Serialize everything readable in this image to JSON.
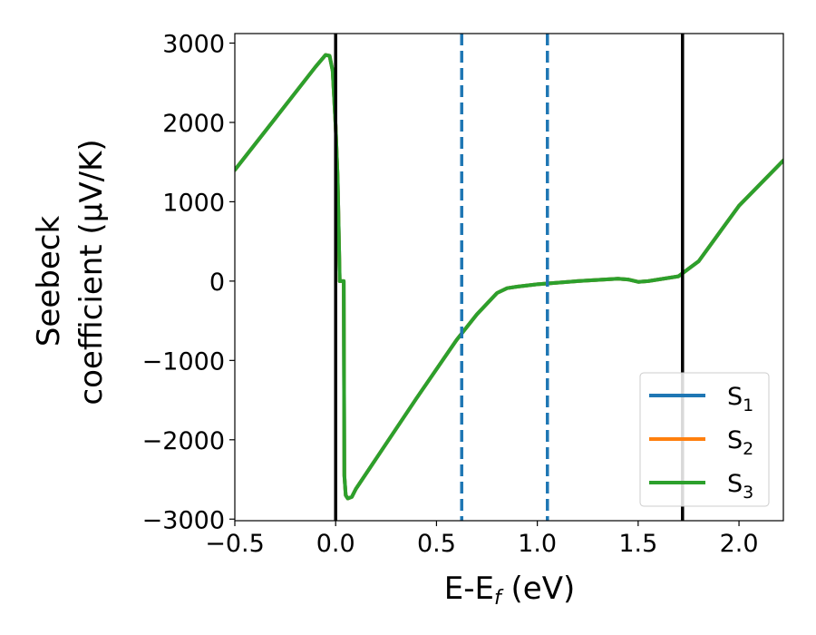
{
  "chart_data": {
    "type": "line",
    "xlabel": {
      "main": "E-E",
      "sub": "f",
      "unit": " (eV)"
    },
    "ylabel": {
      "line1": "Seebeck",
      "line2": "coefficient  (μV/K)"
    },
    "xlim": [
      -0.5,
      2.22
    ],
    "ylim": [
      -3020,
      3120
    ],
    "xticks": [
      -0.5,
      0.0,
      0.5,
      1.0,
      1.5,
      2.0
    ],
    "xtick_labels": [
      "−0.5",
      "0.0",
      "0.5",
      "1.0",
      "1.5",
      "2.0"
    ],
    "yticks": [
      -3000,
      -2000,
      -1000,
      0,
      1000,
      2000,
      3000
    ],
    "ytick_labels": [
      "−3000",
      "−2000",
      "−1000",
      "0",
      "1000",
      "2000",
      "3000"
    ],
    "grid": false,
    "legend_position": "lower-right",
    "series": [
      {
        "name": "S",
        "sub": "1",
        "color": "#1f77b4",
        "x": [
          -0.5,
          -0.3,
          -0.1,
          -0.05,
          -0.03,
          -0.015,
          0.0,
          0.01,
          0.015,
          0.02,
          0.035,
          0.036,
          0.04,
          0.043,
          0.05,
          0.06,
          0.08,
          0.1,
          0.2,
          0.4,
          0.6,
          0.7,
          0.8,
          0.85,
          0.9,
          1.0,
          1.2,
          1.4,
          1.45,
          1.5,
          1.55,
          1.6,
          1.7,
          1.8,
          1.9,
          2.0,
          2.22
        ],
        "y": [
          1400,
          2050,
          2700,
          2850,
          2840,
          2650,
          1950,
          1300,
          700,
          0,
          0,
          0,
          0,
          -2450,
          -2700,
          -2740,
          -2720,
          -2620,
          -2240,
          -1480,
          -740,
          -420,
          -150,
          -90,
          -70,
          -40,
          0,
          30,
          20,
          -10,
          0,
          20,
          60,
          250,
          600,
          950,
          1520
        ]
      },
      {
        "name": "S",
        "sub": "2",
        "color": "#ff7f0e",
        "x": [
          -0.5,
          -0.3,
          -0.1,
          -0.05,
          -0.03,
          -0.015,
          0.0,
          0.01,
          0.015,
          0.02,
          0.035,
          0.036,
          0.04,
          0.043,
          0.05,
          0.06,
          0.08,
          0.1,
          0.2,
          0.4,
          0.6,
          0.7,
          0.8,
          0.85,
          0.9,
          1.0,
          1.2,
          1.4,
          1.45,
          1.5,
          1.55,
          1.6,
          1.7,
          1.8,
          1.9,
          2.0,
          2.22
        ],
        "y": [
          1400,
          2050,
          2700,
          2850,
          2840,
          2650,
          1950,
          1300,
          700,
          0,
          0,
          0,
          0,
          -2450,
          -2700,
          -2740,
          -2720,
          -2620,
          -2240,
          -1480,
          -740,
          -420,
          -150,
          -90,
          -70,
          -40,
          0,
          30,
          20,
          -10,
          0,
          20,
          60,
          250,
          600,
          950,
          1520
        ]
      },
      {
        "name": "S",
        "sub": "3",
        "color": "#2ca02c",
        "x": [
          -0.5,
          -0.3,
          -0.1,
          -0.05,
          -0.03,
          -0.015,
          0.0,
          0.01,
          0.015,
          0.02,
          0.035,
          0.036,
          0.04,
          0.043,
          0.05,
          0.06,
          0.08,
          0.1,
          0.2,
          0.4,
          0.6,
          0.7,
          0.8,
          0.85,
          0.9,
          1.0,
          1.2,
          1.4,
          1.45,
          1.5,
          1.55,
          1.6,
          1.7,
          1.8,
          1.9,
          2.0,
          2.22
        ],
        "y": [
          1400,
          2050,
          2700,
          2850,
          2840,
          2650,
          1950,
          1300,
          700,
          0,
          0,
          0,
          0,
          -2450,
          -2700,
          -2740,
          -2720,
          -2620,
          -2240,
          -1480,
          -740,
          -420,
          -150,
          -90,
          -70,
          -40,
          0,
          30,
          20,
          -10,
          0,
          20,
          60,
          250,
          600,
          950,
          1520
        ]
      }
    ],
    "vlines": [
      {
        "x": 0.0,
        "color": "#000000",
        "style": "solid"
      },
      {
        "x": 0.625,
        "color": "#1f77b4",
        "style": "dashed"
      },
      {
        "x": 1.05,
        "color": "#1f77b4",
        "style": "dashed"
      },
      {
        "x": 1.72,
        "color": "#000000",
        "style": "solid"
      }
    ]
  }
}
